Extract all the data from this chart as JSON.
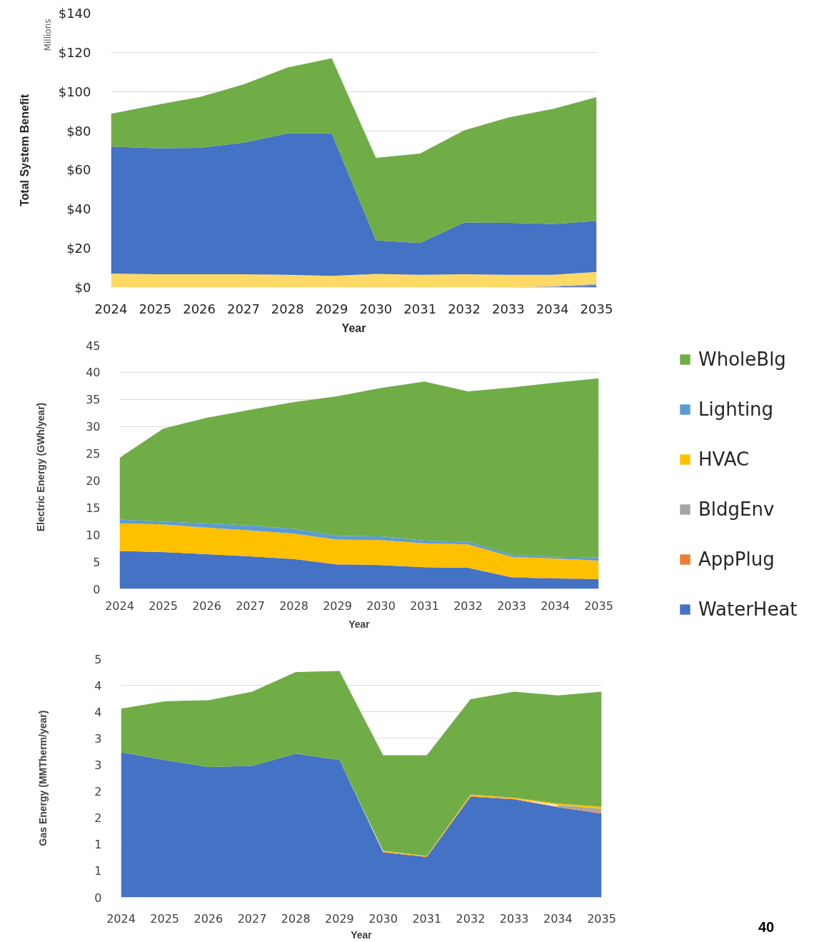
{
  "chart_data": [
    {
      "type": "area",
      "stacked": true,
      "ylabel": "Total System Benefit",
      "xlabel": "Year",
      "annotations": [
        "Millions"
      ],
      "grid": "y",
      "x": [
        2024,
        2025,
        2026,
        2027,
        2028,
        2029,
        2030,
        2031,
        2032,
        2033,
        2034,
        2035
      ],
      "xlim": [
        2024,
        2035
      ],
      "xticks": [
        2024,
        2025,
        2026,
        2027,
        2028,
        2029,
        2030,
        2031,
        2032,
        2033,
        2034,
        2035
      ],
      "ylim": [
        0,
        140
      ],
      "yticks": [
        {
          "value": 0,
          "label": "$0"
        },
        {
          "value": 20,
          "label": "$20"
        },
        {
          "value": 40,
          "label": "$40"
        },
        {
          "value": 60,
          "label": "$60"
        },
        {
          "value": 80,
          "label": "$80"
        },
        {
          "value": 100,
          "label": "$100"
        },
        {
          "value": 120,
          "label": "$120"
        },
        {
          "value": 140,
          "label": "$140"
        }
      ],
      "series": [
        {
          "color": "#4472c4",
          "values": [
            0,
            0,
            0,
            0,
            0,
            0,
            0,
            0,
            0,
            0,
            0.4,
            1.0
          ]
        },
        {
          "color": "#a5a5a5",
          "values": [
            0,
            0,
            0,
            0,
            0,
            0,
            0,
            0,
            0,
            0,
            0.2,
            0.8
          ]
        },
        {
          "color": "#ffd966",
          "values": [
            7.1,
            6.7,
            6.7,
            6.7,
            6.5,
            5.9,
            6.9,
            6.5,
            6.7,
            6.5,
            5.9,
            6.1
          ]
        },
        {
          "color": "#4472c4",
          "values": [
            64.8,
            64.4,
            64.6,
            67.2,
            72.2,
            72.8,
            17.2,
            16.2,
            26.5,
            26.5,
            25.9,
            26.1
          ]
        },
        {
          "color": "#70ad47",
          "values": [
            16.8,
            22.0,
            25.9,
            29.7,
            33.6,
            38.3,
            42.1,
            45.7,
            47.0,
            53.8,
            58.7,
            63.2
          ]
        }
      ]
    },
    {
      "type": "area",
      "stacked": true,
      "ylabel": "Electric Energy (GWh/year)",
      "xlabel": "Year",
      "grid": "y",
      "legend": "right",
      "x": [
        2024,
        2025,
        2026,
        2027,
        2028,
        2029,
        2030,
        2031,
        2032,
        2033,
        2034,
        2035
      ],
      "xlim": [
        2024,
        2035
      ],
      "xticks": [
        2024,
        2025,
        2026,
        2027,
        2028,
        2029,
        2030,
        2031,
        2032,
        2033,
        2034,
        2035
      ],
      "ylim": [
        0,
        45
      ],
      "yticks": [
        0,
        5,
        10,
        15,
        20,
        25,
        30,
        35,
        40,
        45
      ],
      "series": [
        {
          "name": "WaterHeat",
          "color": "#4472c4",
          "values": [
            7.0,
            6.8,
            6.4,
            6.0,
            5.5,
            4.5,
            4.4,
            4.0,
            3.9,
            2.1,
            1.9,
            1.8
          ]
        },
        {
          "name": "AppPlug",
          "color": "#ed7d31",
          "values": [
            0,
            0,
            0,
            0,
            0,
            0.1,
            0,
            0,
            0,
            0.1,
            0.1,
            0
          ]
        },
        {
          "name": "BldgEnv",
          "color": "#a5a5a5",
          "values": [
            null,
            null,
            null,
            null,
            null,
            null,
            null,
            null,
            null,
            null,
            null,
            null
          ]
        },
        {
          "name": "HVAC",
          "color": "#ffc000",
          "values": [
            5.1,
            5.1,
            4.9,
            4.8,
            4.7,
            4.5,
            4.6,
            4.4,
            4.3,
            3.7,
            3.6,
            3.4
          ]
        },
        {
          "name": "Lighting",
          "color": "#5b9bd5",
          "values": [
            0.7,
            0.5,
            0.8,
            0.9,
            0.9,
            0.7,
            0.7,
            0.5,
            0.5,
            0.4,
            0.3,
            0.6
          ]
        },
        {
          "name": "WholeBlg",
          "color": "#70ad47",
          "values": [
            11.4,
            17.2,
            19.5,
            21.4,
            23.4,
            25.8,
            27.4,
            29.4,
            27.8,
            30.9,
            32.2,
            33.1
          ]
        }
      ]
    },
    {
      "type": "area",
      "stacked": true,
      "ylabel": "Gas Energy (MMTherm/year)",
      "xlabel": "Year",
      "grid": "y",
      "annotations": [
        "40"
      ],
      "x": [
        2024,
        2025,
        2026,
        2027,
        2028,
        2029,
        2030,
        2031,
        2032,
        2033,
        2034,
        2035
      ],
      "xlim": [
        2024,
        2035
      ],
      "xticks": [
        2024,
        2025,
        2026,
        2027,
        2028,
        2029,
        2030,
        2031,
        2032,
        2033,
        2034,
        2035
      ],
      "ylim": [
        0,
        4.5
      ],
      "yticks": [
        0,
        {
          "value": 0.5,
          "label": "1"
        },
        {
          "value": 1,
          "label": "1"
        },
        {
          "value": 1.5,
          "label": "2"
        },
        {
          "value": 2,
          "label": "2"
        },
        {
          "value": 2.5,
          "label": "3"
        },
        {
          "value": 3,
          "label": "3"
        },
        {
          "value": 3.5,
          "label": "4"
        },
        {
          "value": 4,
          "label": "4"
        },
        {
          "value": 4.5,
          "label": "5"
        }
      ],
      "series": [
        {
          "color": "#4472c4",
          "values": [
            2.74,
            2.59,
            2.46,
            2.48,
            2.71,
            2.59,
            0.85,
            0.76,
            1.9,
            1.85,
            1.7,
            1.58
          ]
        },
        {
          "color": "#ed7d31",
          "values": [
            null,
            null,
            null,
            null,
            null,
            null,
            0.01,
            0.01,
            0.01,
            0.01,
            0.01,
            0.02
          ]
        },
        {
          "color": "#a5a5a5",
          "values": [
            null,
            null,
            null,
            null,
            null,
            null,
            null,
            null,
            null,
            null,
            0.03,
            0.07
          ]
        },
        {
          "color": "#ffc000",
          "values": [
            null,
            null,
            null,
            null,
            null,
            null,
            0.02,
            0.01,
            0.03,
            0.02,
            0.03,
            0.04
          ]
        },
        {
          "color": "#70ad47",
          "values": [
            0.82,
            1.11,
            1.26,
            1.4,
            1.54,
            1.68,
            1.8,
            1.9,
            1.8,
            2.0,
            2.04,
            2.17
          ]
        }
      ]
    }
  ]
}
